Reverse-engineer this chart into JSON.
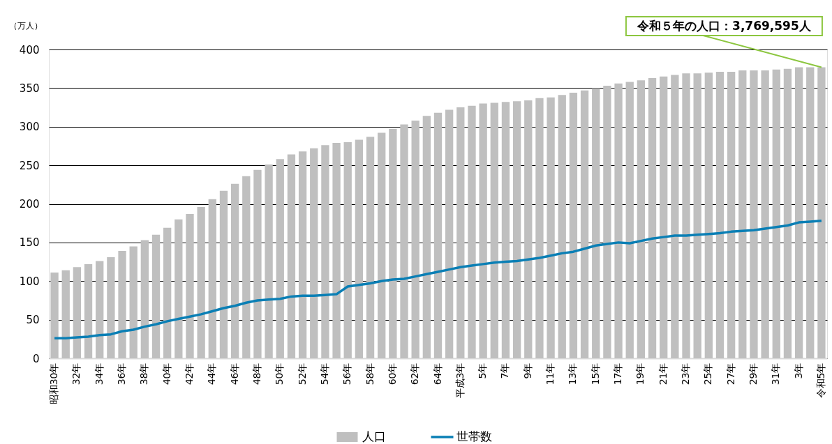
{
  "chart_data": {
    "type": "bar",
    "ylabel": "（万人）",
    "categories": [
      "昭和30年",
      null,
      "32年",
      null,
      "34年",
      null,
      "36年",
      null,
      "38年",
      null,
      "40年",
      null,
      "42年",
      null,
      "44年",
      null,
      "46年",
      null,
      "48年",
      null,
      "50年",
      null,
      "52年",
      null,
      "54年",
      null,
      "56年",
      null,
      "58年",
      null,
      "60年",
      null,
      "62年",
      null,
      "64年",
      null,
      "平成3年",
      null,
      "5年",
      null,
      "7年",
      null,
      "9年",
      null,
      "11年",
      null,
      "13年",
      null,
      "15年",
      null,
      "17年",
      null,
      "19年",
      null,
      "21年",
      null,
      "23年",
      null,
      "25年",
      null,
      "27年",
      null,
      "29年",
      null,
      "31年",
      null,
      "3年",
      null,
      "令和5年"
    ],
    "series": [
      {
        "name": "人口",
        "color": "#bfbfbf",
        "values": [
          111,
          114,
          118,
          122,
          126,
          131,
          139,
          145,
          153,
          160,
          169,
          180,
          187,
          196,
          206,
          217,
          226,
          236,
          244,
          251,
          258,
          264,
          268,
          272,
          276,
          279,
          280,
          283,
          287,
          292,
          297,
          303,
          308,
          314,
          318,
          322,
          325,
          327,
          330,
          331,
          332,
          333,
          334,
          337,
          338,
          341,
          344,
          347,
          350,
          353,
          356,
          358,
          360,
          363,
          365,
          367,
          369,
          369,
          370,
          371,
          371,
          373,
          373,
          373,
          374,
          375,
          377,
          377,
          377
        ]
      },
      {
        "name": "世帯数",
        "type": "line",
        "color": "#0a7fb5",
        "values": [
          26,
          26,
          27,
          28,
          30,
          31,
          35,
          37,
          41,
          44,
          48,
          51,
          54,
          57,
          61,
          65,
          68,
          72,
          75,
          76,
          77,
          80,
          81,
          81,
          82,
          83,
          93,
          95,
          97,
          100,
          102,
          103,
          106,
          109,
          112,
          115,
          118,
          120,
          122,
          124,
          125,
          126,
          128,
          130,
          133,
          136,
          138,
          142,
          146,
          148,
          150,
          149,
          152,
          155,
          157,
          159,
          159,
          160,
          161,
          162,
          164,
          165,
          166,
          168,
          170,
          172,
          176,
          177,
          178
        ]
      }
    ],
    "ylim": [
      0,
      400
    ],
    "yticks": [
      0,
      50,
      100,
      150,
      200,
      250,
      300,
      350,
      400
    ],
    "grid": "y",
    "legend": "bottom",
    "annotations": [
      {
        "text": "令和５年の人口：3,769,595人",
        "x": "令和5年",
        "y": 377
      }
    ]
  }
}
